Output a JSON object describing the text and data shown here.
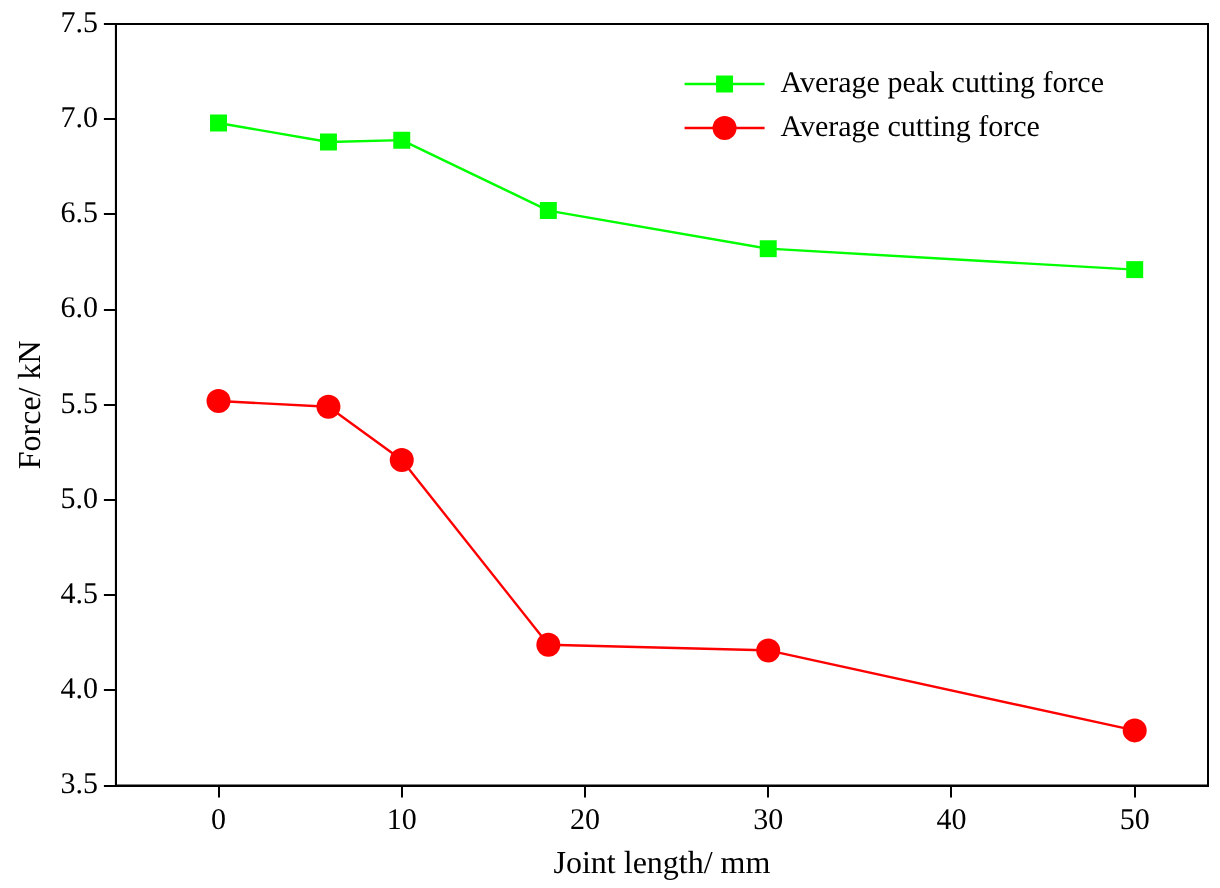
{
  "chart_data": {
    "type": "line",
    "xlabel": "Joint length/ mm",
    "ylabel": "Force/ kN",
    "x": [
      0,
      6,
      10,
      18,
      30,
      50
    ],
    "series": [
      {
        "name": "Average peak cutting force",
        "color": "#00ff00",
        "marker": "square",
        "values": [
          6.98,
          6.88,
          6.89,
          6.52,
          6.32,
          6.21
        ]
      },
      {
        "name": "Average cutting force",
        "color": "#ff0000",
        "marker": "circle",
        "values": [
          5.52,
          5.49,
          5.21,
          4.24,
          4.21,
          3.79
        ]
      }
    ],
    "xlim": [
      -5.6,
      54
    ],
    "xticks": [
      0,
      10,
      20,
      30,
      40,
      50
    ],
    "ylim": [
      3.5,
      7.5
    ],
    "yticks": [
      {
        "value": 3.5,
        "label": "3.5"
      },
      {
        "value": 4,
        "label": "4.0"
      },
      {
        "value": 4.5,
        "label": "4.5"
      },
      {
        "value": 5,
        "label": "5.0"
      },
      {
        "value": 5.5,
        "label": "5.5"
      },
      {
        "value": 6,
        "label": "6.0"
      },
      {
        "value": 6.5,
        "label": "6.5"
      },
      {
        "value": 7,
        "label": "7.0"
      },
      {
        "value": 7.5,
        "label": "7.5"
      }
    ],
    "grid": false,
    "legend": "top right",
    "line_style": "solid"
  }
}
